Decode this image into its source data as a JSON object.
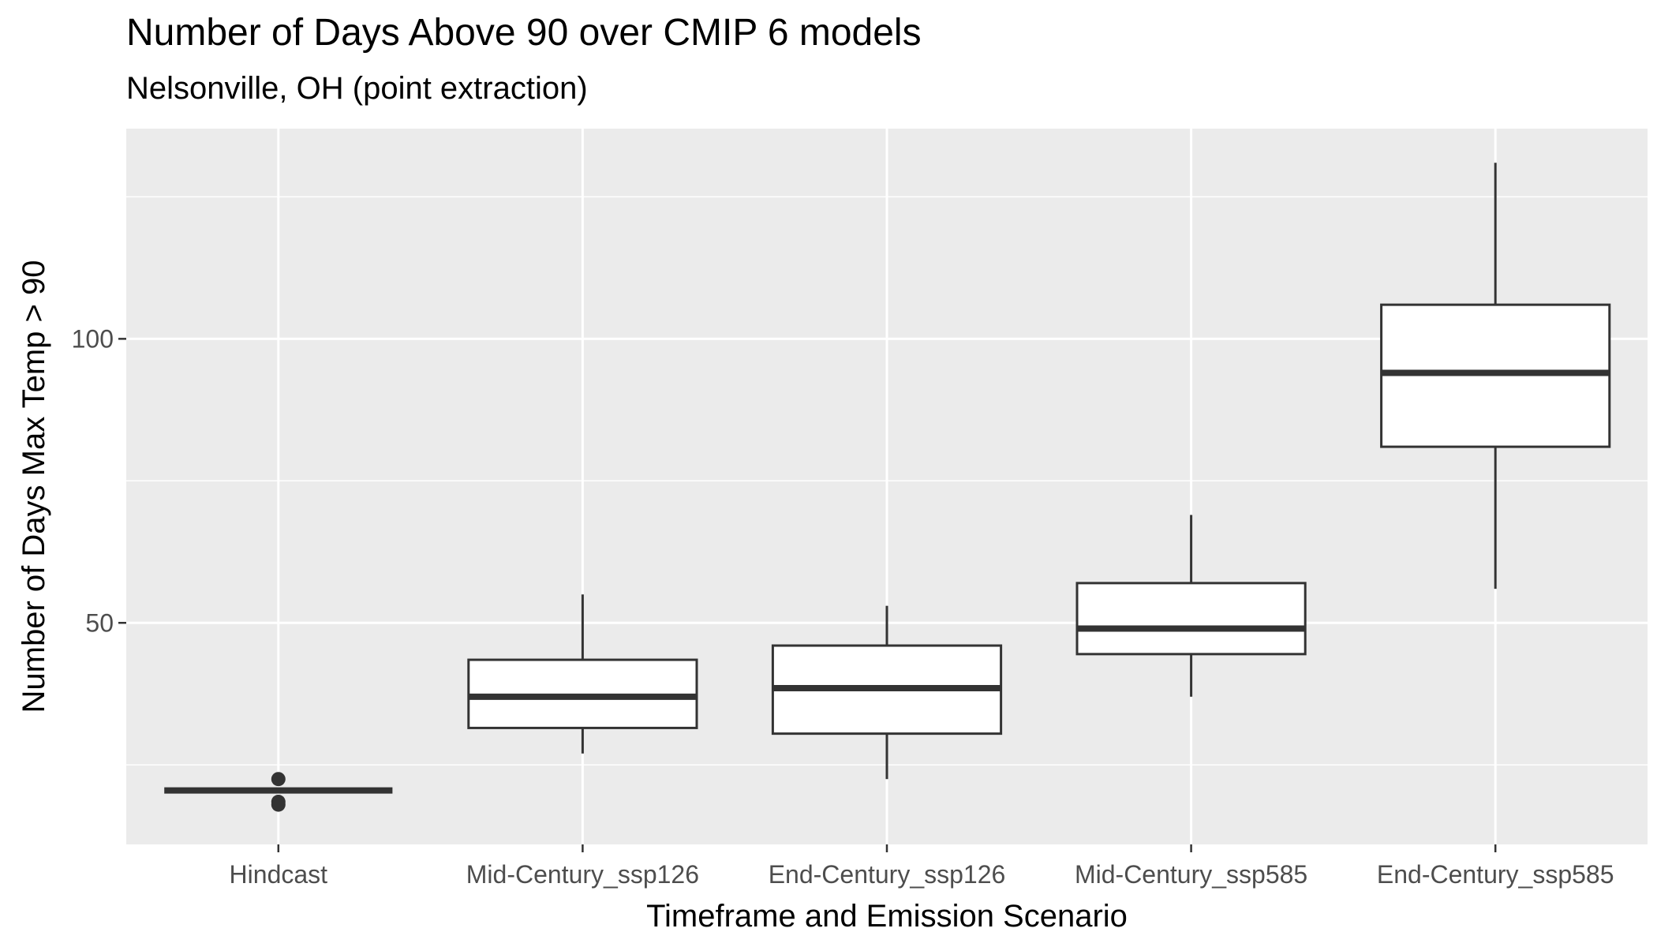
{
  "chart_data": {
    "type": "boxplot",
    "title": "Number of Days Above 90 over CMIP 6 models",
    "subtitle": "Nelsonville, OH (point extraction)",
    "xlabel": "Timeframe and Emission Scenario",
    "ylabel": "Number of Days Max Temp > 90",
    "ylim": [
      11,
      137
    ],
    "yticks": [
      50,
      100
    ],
    "grid": true,
    "categories": [
      "Hindcast",
      "Mid-Century_ssp126",
      "End-Century_ssp126",
      "Mid-Century_ssp585",
      "End-Century_ssp585"
    ],
    "boxes": [
      {
        "min": 20.5,
        "q1": 20.5,
        "median": 20.5,
        "q3": 20.5,
        "max": 20.5,
        "outliers": [
          22.5,
          18.5,
          18
        ]
      },
      {
        "min": 27,
        "q1": 31.5,
        "median": 37,
        "q3": 43.5,
        "max": 55
      },
      {
        "min": 22.5,
        "q1": 30.5,
        "median": 38.5,
        "q3": 46,
        "max": 53
      },
      {
        "min": 37,
        "q1": 44.5,
        "median": 49,
        "q3": 57,
        "max": 69
      },
      {
        "min": 56,
        "q1": 81,
        "median": 94,
        "q3": 106,
        "max": 131
      }
    ],
    "colors": {
      "panel": "#ebebeb",
      "grid": "#ffffff",
      "box_fill": "#ffffff",
      "box_line": "#333333",
      "tick_text": "#4d4d4d"
    }
  }
}
